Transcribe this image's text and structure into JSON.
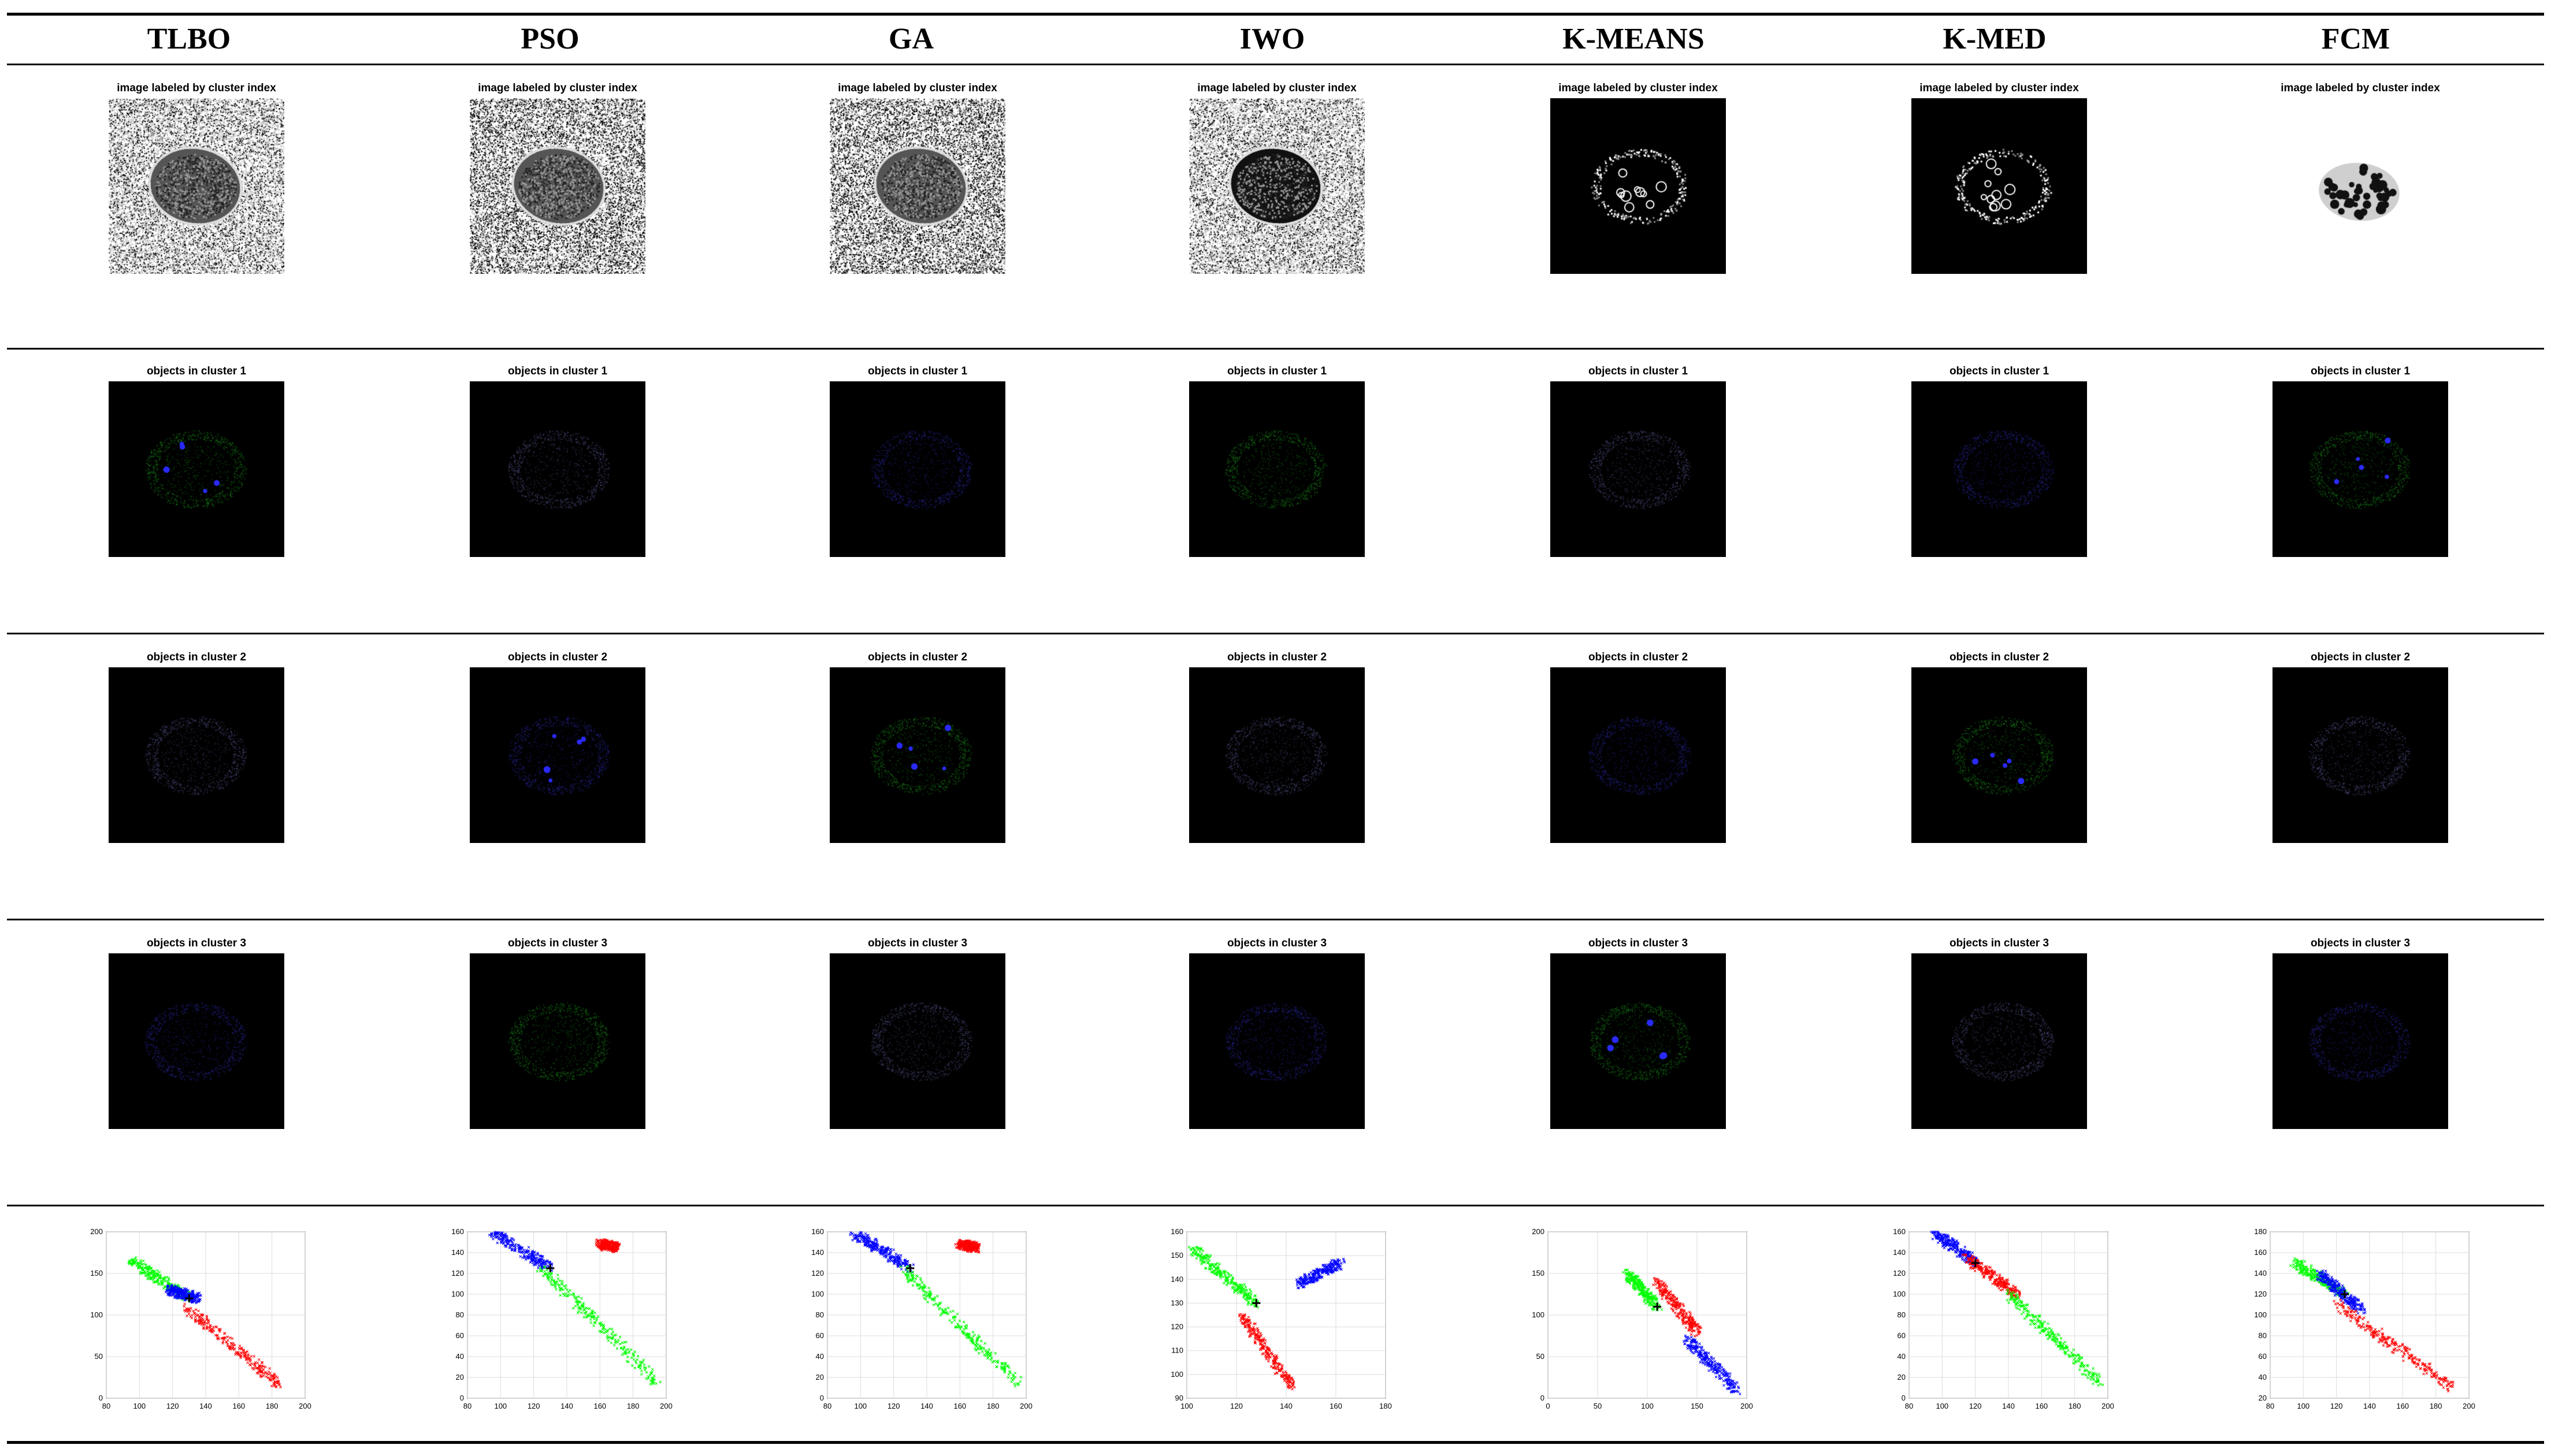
{
  "columns": [
    "TLBO",
    "PSO",
    "GA",
    "IWO",
    "K-MEANS",
    "K-MED",
    "FCM"
  ],
  "row_captions": {
    "labeled": "image labeled by cluster index",
    "cluster1": "objects in cluster 1",
    "cluster2": "objects in cluster 2",
    "cluster3": "objects in cluster 3"
  },
  "colors": {
    "cluster_red": "#ff0000",
    "cluster_green": "#00ff00",
    "cluster_blue": "#0000ff",
    "centroid": "#000000"
  },
  "chart_data": [
    {
      "type": "scatter",
      "method": "TLBO",
      "xlim": [
        80,
        200
      ],
      "ylim": [
        0,
        200
      ],
      "xticks": [
        "80",
        "100",
        "120",
        "140",
        "160",
        "180",
        "200"
      ],
      "yticks": [
        "0",
        "50",
        "100",
        "150",
        "200"
      ],
      "series": [
        {
          "color": "green",
          "values": [
            [
              95,
              165
            ],
            [
              130,
              120
            ]
          ]
        },
        {
          "color": "blue",
          "values": [
            [
              118,
              130
            ],
            [
              135,
              120
            ]
          ]
        },
        {
          "color": "red",
          "values": [
            [
              128,
              110
            ],
            [
              185,
              15
            ]
          ]
        }
      ]
    },
    {
      "type": "scatter",
      "method": "PSO",
      "xlim": [
        80,
        200
      ],
      "ylim": [
        0,
        160
      ],
      "xticks": [
        "80",
        "100",
        "120",
        "140",
        "160",
        "180",
        "200"
      ],
      "yticks": [
        "0",
        "20",
        "40",
        "60",
        "80",
        "100",
        "120",
        "140",
        "160"
      ],
      "series": [
        {
          "color": "blue",
          "values": [
            [
              95,
              160
            ],
            [
              130,
              125
            ]
          ]
        },
        {
          "color": "green",
          "values": [
            [
              125,
              125
            ],
            [
              195,
              15
            ]
          ]
        },
        {
          "color": "red",
          "values": [
            [
              160,
              148
            ],
            [
              170,
              145
            ]
          ]
        }
      ]
    },
    {
      "type": "scatter",
      "method": "GA",
      "xlim": [
        80,
        200
      ],
      "ylim": [
        0,
        160
      ],
      "xticks": [
        "80",
        "100",
        "120",
        "140",
        "160",
        "180",
        "200"
      ],
      "yticks": [
        "0",
        "20",
        "40",
        "60",
        "80",
        "100",
        "120",
        "140",
        "160"
      ],
      "series": [
        {
          "color": "blue",
          "values": [
            [
              95,
              160
            ],
            [
              130,
              125
            ]
          ]
        },
        {
          "color": "green",
          "values": [
            [
              125,
              125
            ],
            [
              195,
              15
            ]
          ]
        },
        {
          "color": "red",
          "values": [
            [
              160,
              148
            ],
            [
              170,
              145
            ]
          ]
        }
      ]
    },
    {
      "type": "scatter",
      "method": "IWO",
      "xlim": [
        100,
        180
      ],
      "ylim": [
        90,
        160
      ],
      "xticks": [
        "100",
        "120",
        "140",
        "160",
        "180"
      ],
      "yticks": [
        "90",
        "100",
        "110",
        "120",
        "130",
        "140",
        "150",
        "160"
      ],
      "series": [
        {
          "color": "green",
          "values": [
            [
              102,
              153
            ],
            [
              128,
              130
            ]
          ]
        },
        {
          "color": "red",
          "values": [
            [
              122,
              125
            ],
            [
              142,
              95
            ]
          ]
        },
        {
          "color": "blue",
          "values": [
            [
              145,
              138
            ],
            [
              162,
              147
            ]
          ]
        }
      ]
    },
    {
      "type": "scatter",
      "method": "K-MEANS",
      "xlim": [
        0,
        200
      ],
      "ylim": [
        0,
        200
      ],
      "xticks": [
        "0",
        "50",
        "100",
        "150",
        "200"
      ],
      "yticks": [
        "0",
        "50",
        "100",
        "150",
        "200"
      ],
      "series": [
        {
          "color": "green",
          "values": [
            [
              80,
              150
            ],
            [
              110,
              110
            ]
          ]
        },
        {
          "color": "red",
          "values": [
            [
              110,
              140
            ],
            [
              150,
              80
            ]
          ]
        },
        {
          "color": "blue",
          "values": [
            [
              140,
              70
            ],
            [
              190,
              10
            ]
          ]
        }
      ]
    },
    {
      "type": "scatter",
      "method": "K-MED",
      "xlim": [
        80,
        200
      ],
      "ylim": [
        0,
        160
      ],
      "xticks": [
        "80",
        "100",
        "120",
        "140",
        "160",
        "180",
        "200"
      ],
      "yticks": [
        "0",
        "20",
        "40",
        "60",
        "80",
        "100",
        "120",
        "140",
        "160"
      ],
      "series": [
        {
          "color": "blue",
          "values": [
            [
              95,
              160
            ],
            [
              120,
              130
            ]
          ]
        },
        {
          "color": "red",
          "values": [
            [
              115,
              135
            ],
            [
              145,
              100
            ]
          ]
        },
        {
          "color": "green",
          "values": [
            [
              140,
              100
            ],
            [
              195,
              15
            ]
          ]
        }
      ]
    },
    {
      "type": "scatter",
      "method": "FCM",
      "xlim": [
        80,
        200
      ],
      "ylim": [
        20,
        180
      ],
      "xticks": [
        "80",
        "100",
        "120",
        "140",
        "160",
        "180",
        "200"
      ],
      "yticks": [
        "20",
        "40",
        "60",
        "80",
        "100",
        "120",
        "140",
        "160",
        "180"
      ],
      "series": [
        {
          "color": "green",
          "values": [
            [
              95,
              150
            ],
            [
              125,
              120
            ]
          ]
        },
        {
          "color": "blue",
          "values": [
            [
              110,
              140
            ],
            [
              135,
              105
            ]
          ]
        },
        {
          "color": "red",
          "values": [
            [
              120,
              110
            ],
            [
              190,
              30
            ]
          ]
        }
      ]
    }
  ]
}
